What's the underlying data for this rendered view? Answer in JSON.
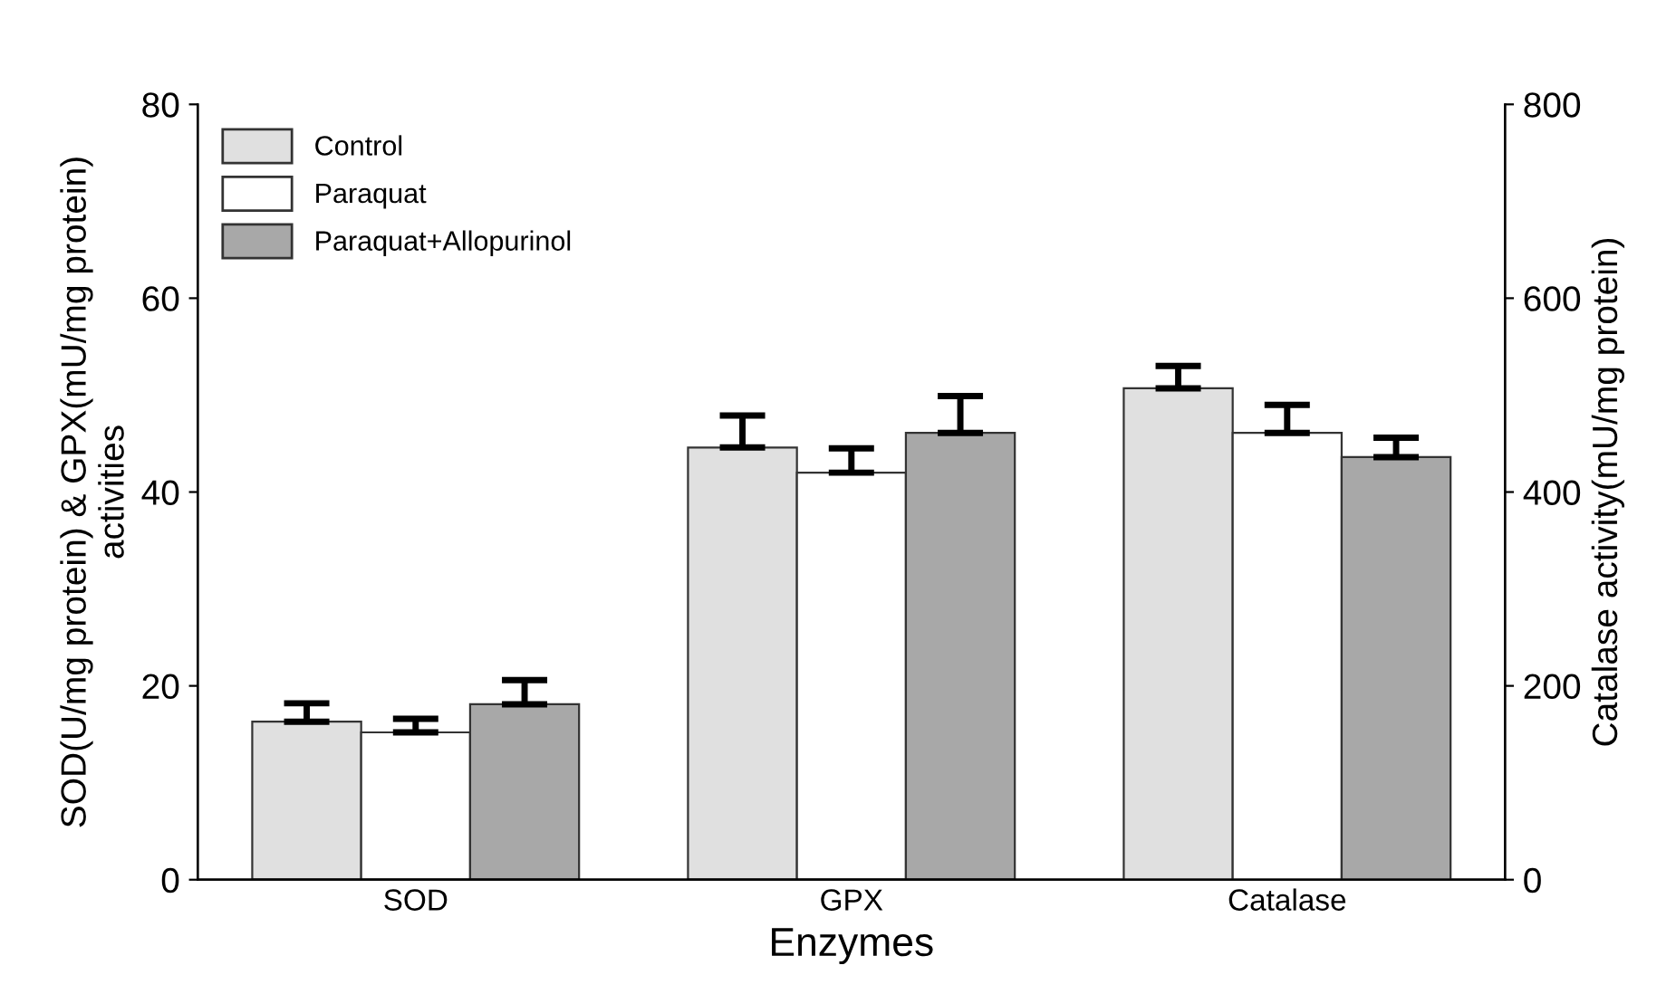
{
  "chart_data": {
    "type": "bar",
    "xlabel": "Enzymes",
    "ylabel": "SOD(U/mg protein) & GPX(mU/mg protein)\nactivities",
    "y2label": "Catalase activity(mU/mg protein)",
    "categories": [
      "SOD",
      "GPX",
      "Catalase"
    ],
    "series": [
      {
        "name": "Control",
        "color": "#e0e0e0",
        "values": [
          16.3,
          44.6,
          null
        ],
        "errors": [
          1.9,
          3.3,
          null
        ]
      },
      {
        "name": "Paraquat",
        "color": "#ffffff",
        "values": [
          15.2,
          42.0,
          null
        ],
        "errors": [
          1.4,
          2.5,
          null
        ]
      },
      {
        "name": "Paraquat+Allopurinol",
        "color": "#a8a8a8",
        "values": [
          18.1,
          46.1,
          null
        ],
        "errors": [
          2.5,
          3.8,
          null
        ]
      },
      {
        "color": "#e0e0e0",
        "axis": "y2",
        "values": [
          null,
          null,
          507
        ],
        "errors": [
          null,
          null,
          23
        ]
      },
      {
        "color": "#ffffff",
        "axis": "y2",
        "values": [
          null,
          null,
          461
        ],
        "errors": [
          null,
          null,
          29
        ]
      },
      {
        "color": "#a8a8a8",
        "axis": "y2",
        "values": [
          null,
          null,
          436
        ],
        "errors": [
          null,
          null,
          20
        ]
      }
    ],
    "ylim": [
      0,
      80
    ],
    "yticks": [
      0,
      20,
      40,
      60,
      80
    ],
    "y2lim": [
      0,
      800
    ],
    "y2ticks": [
      0,
      200,
      400,
      600,
      800
    ],
    "legend": "top left",
    "grid": false
  }
}
